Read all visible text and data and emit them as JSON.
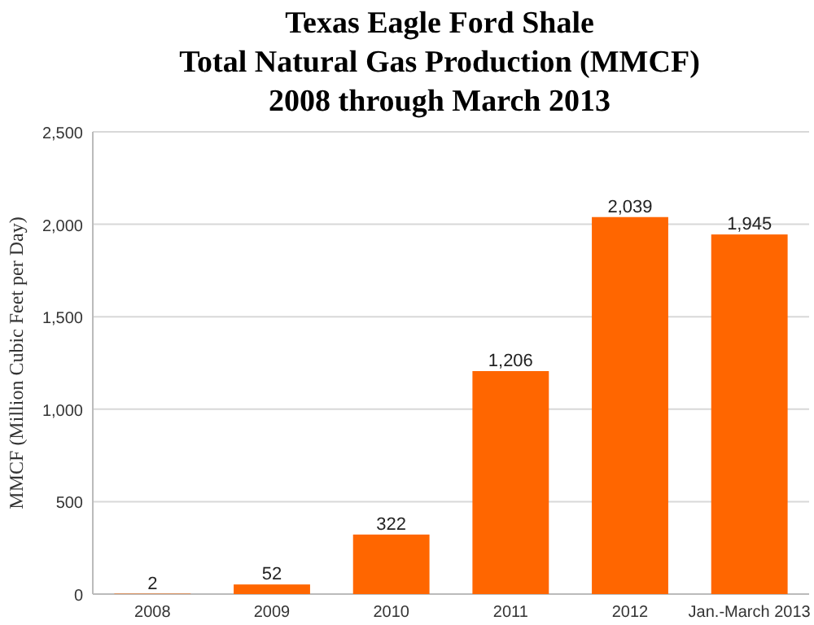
{
  "chart_data": {
    "type": "bar",
    "title": "Texas Eagle Ford Shale\nTotal Natural Gas Production (MMCF)\n2008 through March 2013",
    "ylabel": "MMCF (Million Cubic Feet per Day)",
    "categories": [
      "2008",
      "2009",
      "2010",
      "2011",
      "2012",
      "Jan.-March 2013"
    ],
    "values": [
      2,
      52,
      322,
      1206,
      2039,
      1945
    ],
    "color": "#ff6600",
    "value_labels": [
      "2",
      "52",
      "322",
      "1,206",
      "2,039",
      "1,945"
    ],
    "ylim": [
      0,
      2500
    ],
    "yticks": [
      {
        "value": 0,
        "label": "0"
      },
      {
        "value": 500,
        "label": "500"
      },
      {
        "value": 1000,
        "label": "1,000"
      },
      {
        "value": 1500,
        "label": "1,500"
      },
      {
        "value": 2000,
        "label": "2,000"
      },
      {
        "value": 2500,
        "label": "2,500"
      }
    ],
    "grid": "y"
  }
}
